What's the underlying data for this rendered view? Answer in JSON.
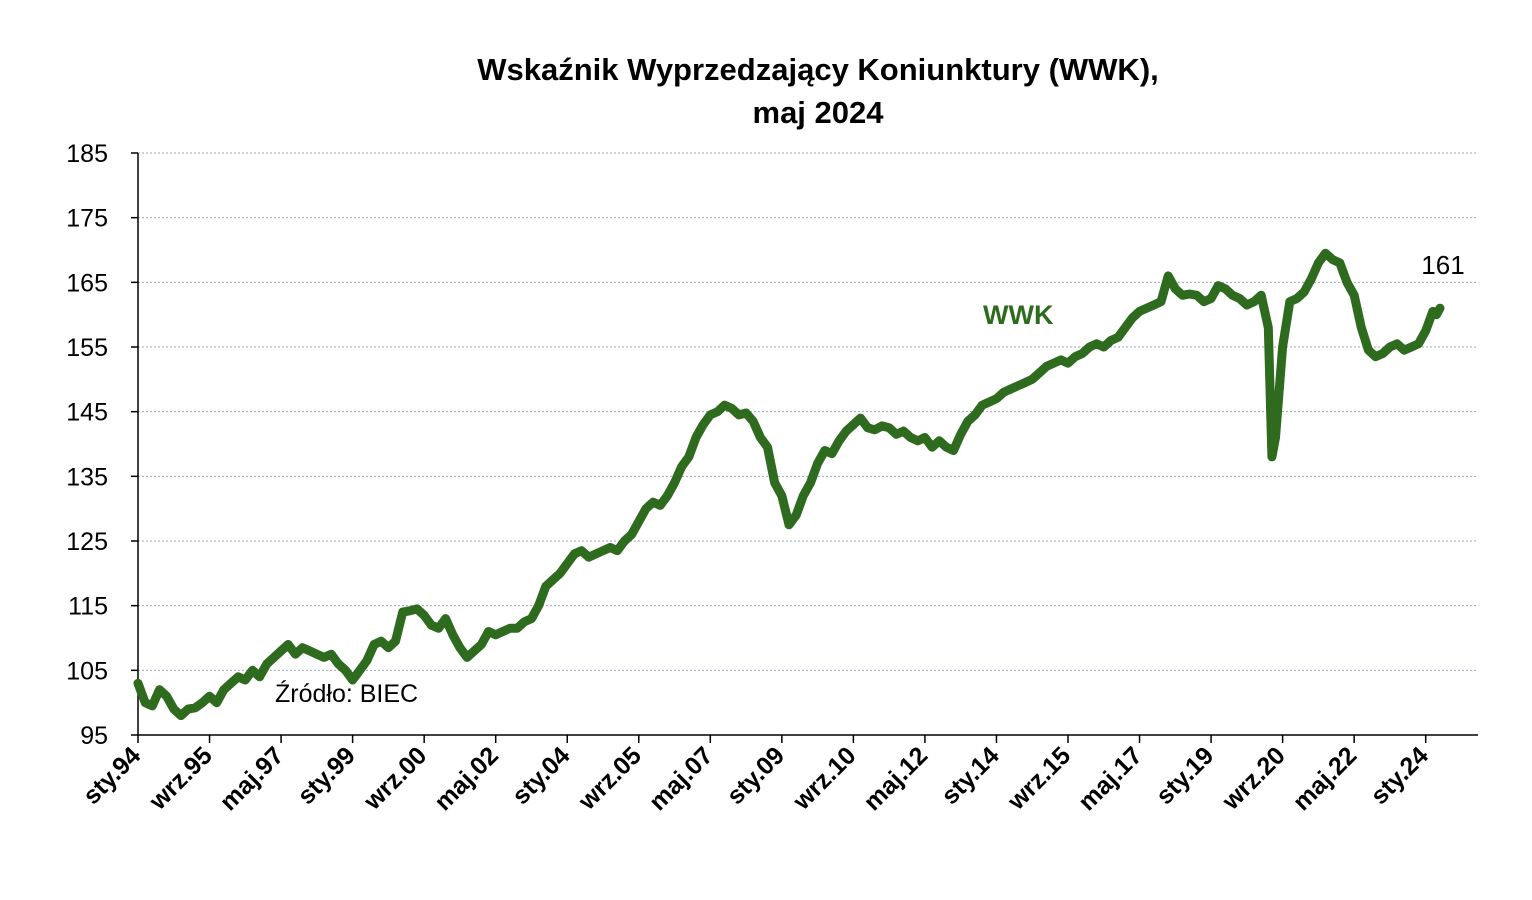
{
  "chart_data": {
    "type": "line",
    "title_line1": "Wskaźnik Wyprzedzający Koniunktury (WWK),",
    "title_line2": "maj 2024",
    "xlabel": "",
    "ylabel": "",
    "ylim": [
      95,
      185
    ],
    "yticks": [
      95,
      105,
      115,
      125,
      135,
      145,
      155,
      165,
      175,
      185
    ],
    "x_range": [
      "1994-01",
      "2024-05"
    ],
    "xticks": [
      {
        "date": "1994-01",
        "label": "sty.94"
      },
      {
        "date": "1995-09",
        "label": "wrz.95"
      },
      {
        "date": "1997-05",
        "label": "maj.97"
      },
      {
        "date": "1999-01",
        "label": "sty.99"
      },
      {
        "date": "2000-09",
        "label": "wrz.00"
      },
      {
        "date": "2002-05",
        "label": "maj.02"
      },
      {
        "date": "2004-01",
        "label": "sty.04"
      },
      {
        "date": "2005-09",
        "label": "wrz.05"
      },
      {
        "date": "2007-05",
        "label": "maj.07"
      },
      {
        "date": "2009-01",
        "label": "sty.09"
      },
      {
        "date": "2010-09",
        "label": "wrz.10"
      },
      {
        "date": "2012-05",
        "label": "maj.12"
      },
      {
        "date": "2014-01",
        "label": "sty.14"
      },
      {
        "date": "2015-09",
        "label": "wrz.15"
      },
      {
        "date": "2017-05",
        "label": "maj.17"
      },
      {
        "date": "2019-01",
        "label": "sty.19"
      },
      {
        "date": "2020-09",
        "label": "wrz.20"
      },
      {
        "date": "2022-05",
        "label": "maj.22"
      },
      {
        "date": "2024-01",
        "label": "sty.24"
      }
    ],
    "grid": "horizontal-dotted",
    "series": [
      {
        "name": "WWK",
        "color": "#2e6b1e",
        "points": [
          [
            "1994-01",
            103
          ],
          [
            "1994-03",
            100
          ],
          [
            "1994-05",
            99.5
          ],
          [
            "1994-07",
            102
          ],
          [
            "1994-09",
            101
          ],
          [
            "1994-11",
            99
          ],
          [
            "1995-01",
            98
          ],
          [
            "1995-03",
            99
          ],
          [
            "1995-05",
            99.2
          ],
          [
            "1995-07",
            100
          ],
          [
            "1995-09",
            101
          ],
          [
            "1995-11",
            100
          ],
          [
            "1996-01",
            102
          ],
          [
            "1996-03",
            103
          ],
          [
            "1996-05",
            104
          ],
          [
            "1996-07",
            103.5
          ],
          [
            "1996-09",
            105
          ],
          [
            "1996-11",
            104
          ],
          [
            "1997-01",
            106
          ],
          [
            "1997-03",
            107
          ],
          [
            "1997-05",
            108
          ],
          [
            "1997-07",
            109
          ],
          [
            "1997-09",
            107.5
          ],
          [
            "1997-11",
            108.5
          ],
          [
            "1998-01",
            108
          ],
          [
            "1998-03",
            107.5
          ],
          [
            "1998-05",
            107
          ],
          [
            "1998-07",
            107.5
          ],
          [
            "1998-09",
            106
          ],
          [
            "1998-11",
            105
          ],
          [
            "1999-01",
            103.5
          ],
          [
            "1999-03",
            105
          ],
          [
            "1999-05",
            106.5
          ],
          [
            "1999-07",
            109
          ],
          [
            "1999-09",
            109.5
          ],
          [
            "1999-11",
            108.5
          ],
          [
            "2000-01",
            109.5
          ],
          [
            "2000-03",
            114
          ],
          [
            "2000-05",
            114.2
          ],
          [
            "2000-07",
            114.5
          ],
          [
            "2000-09",
            113.5
          ],
          [
            "2000-11",
            112
          ],
          [
            "2001-01",
            111.5
          ],
          [
            "2001-03",
            113
          ],
          [
            "2001-05",
            110.5
          ],
          [
            "2001-07",
            108.5
          ],
          [
            "2001-09",
            107
          ],
          [
            "2001-11",
            108
          ],
          [
            "2002-01",
            109
          ],
          [
            "2002-03",
            111
          ],
          [
            "2002-05",
            110.5
          ],
          [
            "2002-07",
            111
          ],
          [
            "2002-09",
            111.5
          ],
          [
            "2002-11",
            111.5
          ],
          [
            "2003-01",
            112.5
          ],
          [
            "2003-03",
            113
          ],
          [
            "2003-05",
            115
          ],
          [
            "2003-07",
            118
          ],
          [
            "2003-09",
            119
          ],
          [
            "2003-11",
            120
          ],
          [
            "2004-01",
            121.5
          ],
          [
            "2004-03",
            123
          ],
          [
            "2004-05",
            123.5
          ],
          [
            "2004-07",
            122.5
          ],
          [
            "2004-09",
            123
          ],
          [
            "2004-11",
            123.5
          ],
          [
            "2005-01",
            124
          ],
          [
            "2005-03",
            123.5
          ],
          [
            "2005-05",
            125
          ],
          [
            "2005-07",
            126
          ],
          [
            "2005-09",
            128
          ],
          [
            "2005-11",
            130
          ],
          [
            "2006-01",
            131
          ],
          [
            "2006-03",
            130.5
          ],
          [
            "2006-05",
            132
          ],
          [
            "2006-07",
            134
          ],
          [
            "2006-09",
            136.5
          ],
          [
            "2006-11",
            138
          ],
          [
            "2007-01",
            141
          ],
          [
            "2007-03",
            143
          ],
          [
            "2007-05",
            144.5
          ],
          [
            "2007-07",
            145
          ],
          [
            "2007-09",
            146
          ],
          [
            "2007-11",
            145.5
          ],
          [
            "2008-01",
            144.5
          ],
          [
            "2008-03",
            144.8
          ],
          [
            "2008-05",
            143.5
          ],
          [
            "2008-07",
            141
          ],
          [
            "2008-09",
            139.5
          ],
          [
            "2008-11",
            134
          ],
          [
            "2009-01",
            132
          ],
          [
            "2009-03",
            127.5
          ],
          [
            "2009-05",
            129
          ],
          [
            "2009-07",
            132
          ],
          [
            "2009-09",
            134
          ],
          [
            "2009-11",
            137
          ],
          [
            "2010-01",
            139
          ],
          [
            "2010-03",
            138.5
          ],
          [
            "2010-05",
            140.5
          ],
          [
            "2010-07",
            142
          ],
          [
            "2010-09",
            143
          ],
          [
            "2010-11",
            144
          ],
          [
            "2011-01",
            142.5
          ],
          [
            "2011-03",
            142.2
          ],
          [
            "2011-05",
            142.8
          ],
          [
            "2011-07",
            142.5
          ],
          [
            "2011-09",
            141.5
          ],
          [
            "2011-11",
            142
          ],
          [
            "2012-01",
            141
          ],
          [
            "2012-03",
            140.5
          ],
          [
            "2012-05",
            141
          ],
          [
            "2012-07",
            139.5
          ],
          [
            "2012-09",
            140.5
          ],
          [
            "2012-11",
            139.5
          ],
          [
            "2013-01",
            139
          ],
          [
            "2013-03",
            141.5
          ],
          [
            "2013-05",
            143.5
          ],
          [
            "2013-07",
            144.5
          ],
          [
            "2013-09",
            146
          ],
          [
            "2013-11",
            146.5
          ],
          [
            "2014-01",
            147
          ],
          [
            "2014-03",
            148
          ],
          [
            "2014-05",
            148.5
          ],
          [
            "2014-07",
            149
          ],
          [
            "2014-09",
            149.5
          ],
          [
            "2014-11",
            150
          ],
          [
            "2015-01",
            151
          ],
          [
            "2015-03",
            152
          ],
          [
            "2015-05",
            152.5
          ],
          [
            "2015-07",
            153
          ],
          [
            "2015-09",
            152.5
          ],
          [
            "2015-11",
            153.5
          ],
          [
            "2016-01",
            154
          ],
          [
            "2016-03",
            155
          ],
          [
            "2016-05",
            155.5
          ],
          [
            "2016-07",
            155
          ],
          [
            "2016-09",
            156
          ],
          [
            "2016-11",
            156.5
          ],
          [
            "2017-01",
            158
          ],
          [
            "2017-03",
            159.5
          ],
          [
            "2017-05",
            160.5
          ],
          [
            "2017-07",
            161
          ],
          [
            "2017-09",
            161.5
          ],
          [
            "2017-11",
            162
          ],
          [
            "2018-01",
            166
          ],
          [
            "2018-03",
            164
          ],
          [
            "2018-05",
            163
          ],
          [
            "2018-07",
            163.2
          ],
          [
            "2018-09",
            163
          ],
          [
            "2018-11",
            162
          ],
          [
            "2019-01",
            162.5
          ],
          [
            "2019-03",
            164.5
          ],
          [
            "2019-05",
            164
          ],
          [
            "2019-07",
            163
          ],
          [
            "2019-09",
            162.5
          ],
          [
            "2019-11",
            161.5
          ],
          [
            "2020-01",
            162
          ],
          [
            "2020-03",
            163
          ],
          [
            "2020-05",
            158
          ],
          [
            "2020-06",
            138
          ],
          [
            "2020-07",
            141
          ],
          [
            "2020-09",
            155
          ],
          [
            "2020-11",
            162
          ],
          [
            "2021-01",
            162.5
          ],
          [
            "2021-03",
            163.5
          ],
          [
            "2021-05",
            165.5
          ],
          [
            "2021-07",
            168
          ],
          [
            "2021-09",
            169.5
          ],
          [
            "2021-11",
            168.5
          ],
          [
            "2022-01",
            168
          ],
          [
            "2022-03",
            165
          ],
          [
            "2022-05",
            163
          ],
          [
            "2022-07",
            158
          ],
          [
            "2022-09",
            154.5
          ],
          [
            "2022-11",
            153.5
          ],
          [
            "2023-01",
            154
          ],
          [
            "2023-03",
            155
          ],
          [
            "2023-05",
            155.5
          ],
          [
            "2023-07",
            154.5
          ],
          [
            "2023-09",
            155
          ],
          [
            "2023-11",
            155.5
          ],
          [
            "2024-01",
            157.5
          ],
          [
            "2024-02",
            159
          ],
          [
            "2024-03",
            160.5
          ],
          [
            "2024-04",
            160
          ],
          [
            "2024-05",
            161
          ]
        ]
      }
    ],
    "series_label": "WWK",
    "last_value_label": "161",
    "source_note": "Źródło: BIEC"
  }
}
